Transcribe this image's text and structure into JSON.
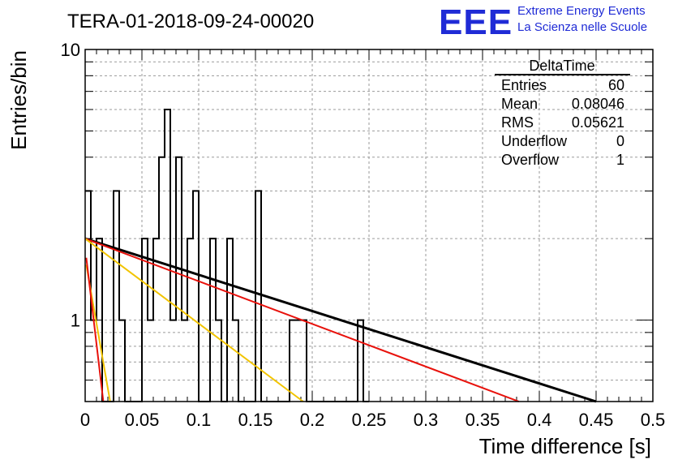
{
  "title": "TERA-01-2018-09-24-00020",
  "logo": {
    "mark": "EEE",
    "line1": "Extreme Energy Events",
    "line2": "La Scienza nelle Scuole",
    "color": "#1f2bd6"
  },
  "stats": {
    "title": "DeltaTime",
    "rows": [
      {
        "label": "Entries",
        "value": "60"
      },
      {
        "label": "Mean",
        "value": "0.08046"
      },
      {
        "label": "RMS",
        "value": "0.05621"
      },
      {
        "label": "Underflow",
        "value": "0"
      },
      {
        "label": "Overflow",
        "value": "1"
      }
    ]
  },
  "chart_data": {
    "type": "histogram",
    "title": "TERA-01-2018-09-24-00020",
    "xlabel": "Time difference [s]",
    "ylabel": "Entries/bin",
    "xlim": [
      0,
      0.5
    ],
    "ylim": [
      0.5,
      10
    ],
    "ylog": true,
    "grid": true,
    "x_ticks": [
      "0",
      "0.05",
      "0.1",
      "0.15",
      "0.2",
      "0.25",
      "0.3",
      "0.35",
      "0.4",
      "0.45",
      "0.5"
    ],
    "y_ticks": [
      "1",
      "10"
    ],
    "bin_width": 0.005,
    "bin_centers": [
      0.0025,
      0.0075,
      0.0125,
      0.0175,
      0.0225,
      0.0275,
      0.0325,
      0.0375,
      0.0425,
      0.0475,
      0.0525,
      0.0575,
      0.0625,
      0.0675,
      0.0725,
      0.0775,
      0.0825,
      0.0875,
      0.0925,
      0.0975,
      0.1025,
      0.1075,
      0.1125,
      0.1175,
      0.1225,
      0.1275,
      0.1325,
      0.1375,
      0.1425,
      0.1475,
      0.1525,
      0.1575,
      0.1625,
      0.1675,
      0.1725,
      0.1775,
      0.1825,
      0.1875,
      0.1925,
      0.1975,
      0.2025,
      0.2075,
      0.2125,
      0.2175,
      0.2225,
      0.2275,
      0.2325,
      0.2375,
      0.2425,
      0.2475
    ],
    "counts": [
      3,
      1,
      2,
      0,
      0,
      3,
      1,
      0,
      0,
      0,
      2,
      1,
      2,
      4,
      6,
      1,
      4,
      1,
      2,
      3,
      0,
      0,
      2,
      1,
      0,
      2,
      1,
      0,
      0,
      0,
      3,
      0,
      0,
      0,
      0,
      0,
      1,
      1,
      1,
      0,
      0,
      0,
      0,
      0,
      0,
      0,
      0,
      0,
      1,
      0
    ],
    "histogram_color": "#000000",
    "series": [
      {
        "color": "#000000",
        "x": [
          0.0,
          0.45
        ],
        "y": [
          2.0,
          0.5
        ]
      },
      {
        "color": "#e8120c",
        "x": [
          0.0,
          0.382
        ],
        "y": [
          2.0,
          0.5
        ]
      },
      {
        "color": "#f2c400",
        "x": [
          0.0,
          0.192
        ],
        "y": [
          2.0,
          0.5
        ]
      },
      {
        "color": "#f2c400",
        "x": [
          0.001,
          0.022
        ],
        "y": [
          1.6,
          0.5
        ]
      },
      {
        "color": "#e8120c",
        "x": [
          0.001,
          0.016
        ],
        "y": [
          1.7,
          0.5
        ]
      }
    ]
  }
}
